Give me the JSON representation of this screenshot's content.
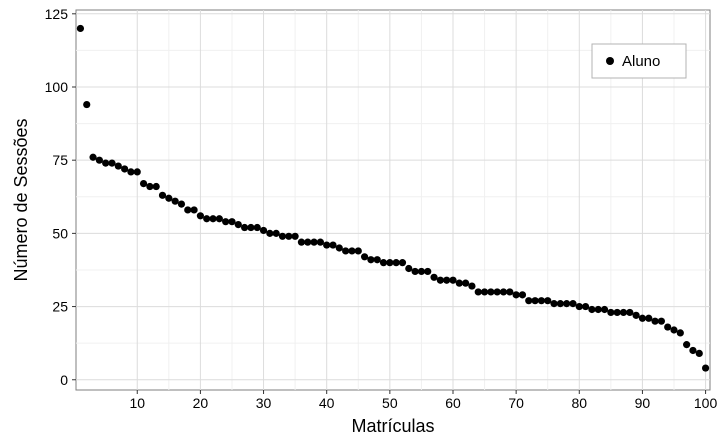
{
  "chart_data": {
    "type": "scatter",
    "xlabel": "Matrículas",
    "ylabel": "Número de Sessões",
    "xlim": [
      0.3,
      100.7
    ],
    "ylim": [
      -3.5,
      126.3
    ],
    "x_ticks": [
      10,
      20,
      30,
      40,
      50,
      60,
      70,
      80,
      90,
      100
    ],
    "y_ticks": [
      0,
      25,
      50,
      75,
      100,
      125
    ],
    "grid": true,
    "legend_position": "top-right",
    "series": [
      {
        "name": "Aluno",
        "color": "#000000",
        "x": [
          1,
          2,
          3,
          4,
          5,
          6,
          7,
          8,
          9,
          10,
          11,
          12,
          13,
          14,
          15,
          16,
          17,
          18,
          19,
          20,
          21,
          22,
          23,
          24,
          25,
          26,
          27,
          28,
          29,
          30,
          31,
          32,
          33,
          34,
          35,
          36,
          37,
          38,
          39,
          40,
          41,
          42,
          43,
          44,
          45,
          46,
          47,
          48,
          49,
          50,
          51,
          52,
          53,
          54,
          55,
          56,
          57,
          58,
          59,
          60,
          61,
          62,
          63,
          64,
          65,
          66,
          67,
          68,
          69,
          70,
          71,
          72,
          73,
          74,
          75,
          76,
          77,
          78,
          79,
          80,
          81,
          82,
          83,
          84,
          85,
          86,
          87,
          88,
          89,
          90,
          91,
          92,
          93,
          94,
          95,
          96,
          97,
          98,
          99,
          100
        ],
        "y": [
          120,
          94,
          76,
          75,
          74,
          74,
          73,
          72,
          71,
          71,
          67,
          66,
          66,
          63,
          62,
          61,
          60,
          58,
          58,
          56,
          55,
          55,
          55,
          54,
          54,
          53,
          52,
          52,
          52,
          51,
          50,
          50,
          49,
          49,
          49,
          47,
          47,
          47,
          47,
          46,
          46,
          45,
          44,
          44,
          44,
          42,
          41,
          41,
          40,
          40,
          40,
          40,
          38,
          37,
          37,
          37,
          35,
          34,
          34,
          34,
          33,
          33,
          32,
          30,
          30,
          30,
          30,
          30,
          30,
          29,
          29,
          27,
          27,
          27,
          27,
          26,
          26,
          26,
          26,
          25,
          25,
          24,
          24,
          24,
          23,
          23,
          23,
          23,
          22,
          21,
          21,
          20,
          20,
          18,
          17,
          16,
          12,
          10,
          9,
          4
        ]
      }
    ]
  }
}
